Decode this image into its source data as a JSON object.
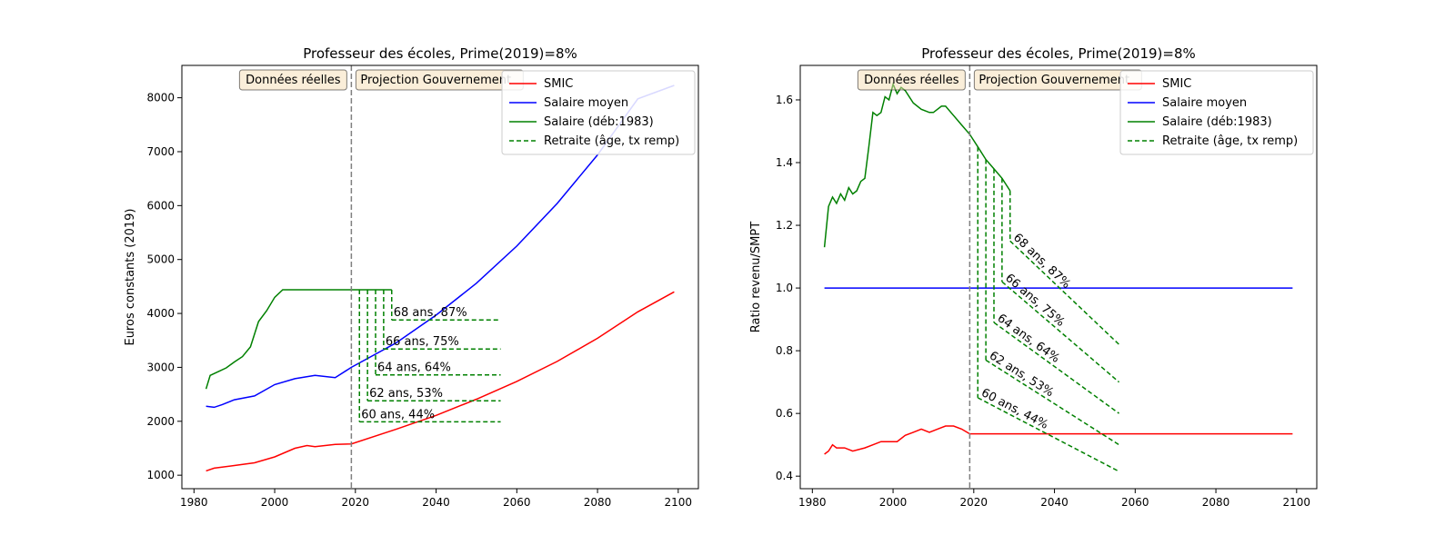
{
  "chart_data": [
    {
      "type": "line",
      "title": "Professeur des écoles, Prime(2019)=8%",
      "xlabel": "",
      "ylabel": "Euros constants (2019)",
      "xlim": [
        1977,
        2105
      ],
      "ylim": [
        750,
        8600
      ],
      "xticks": [
        1980,
        2000,
        2020,
        2040,
        2060,
        2080,
        2100
      ],
      "yticks": [
        1000,
        2000,
        3000,
        4000,
        5000,
        6000,
        7000,
        8000
      ],
      "grid": false,
      "legend_position": "top-right",
      "divider_x": 2019,
      "region_labels": [
        "Données réelles",
        "Projection Gouvernement"
      ],
      "series": [
        {
          "name": "SMIC",
          "color": "#ff0000",
          "style": "solid",
          "x": [
            1983,
            1985,
            1990,
            1995,
            2000,
            2005,
            2008,
            2010,
            2015,
            2019,
            2030,
            2040,
            2050,
            2060,
            2070,
            2080,
            2090,
            2099
          ],
          "y": [
            1080,
            1130,
            1180,
            1230,
            1340,
            1500,
            1550,
            1530,
            1570,
            1580,
            1850,
            2110,
            2410,
            2740,
            3110,
            3540,
            4030,
            4400
          ]
        },
        {
          "name": "Salaire moyen",
          "color": "#0000ff",
          "style": "solid",
          "x": [
            1983,
            1985,
            1987,
            1990,
            1995,
            2000,
            2005,
            2010,
            2015,
            2019,
            2030,
            2040,
            2050,
            2060,
            2070,
            2080,
            2090,
            2099
          ],
          "y": [
            2280,
            2260,
            2310,
            2400,
            2470,
            2680,
            2790,
            2850,
            2810,
            3000,
            3450,
            3970,
            4560,
            5250,
            6040,
            6940,
            7980,
            8230
          ]
        },
        {
          "name": "Salaire (déb:1983)",
          "color": "#008000",
          "style": "solid",
          "x": [
            1983,
            1984,
            1986,
            1988,
            1990,
            1992,
            1994,
            1996,
            1998,
            2000,
            2002,
            2010,
            2019,
            2029
          ],
          "y": [
            2600,
            2850,
            2920,
            2990,
            3100,
            3200,
            3380,
            3850,
            4050,
            4300,
            4440,
            4440,
            4440,
            4440
          ]
        }
      ],
      "retirement": {
        "name": "Retraite (âge, tx remp)",
        "color": "#008000",
        "style": "dashed",
        "end_x": 2056,
        "items": [
          {
            "label": "60 ans, 44%",
            "start_x": 2021,
            "value": 1990
          },
          {
            "label": "62 ans, 53%",
            "start_x": 2023,
            "value": 2380
          },
          {
            "label": "64 ans, 64%",
            "start_x": 2025,
            "value": 2860
          },
          {
            "label": "66 ans, 75%",
            "start_x": 2027,
            "value": 3340
          },
          {
            "label": "68 ans, 87%",
            "start_x": 2029,
            "value": 3880
          }
        ],
        "from_value": 4440
      }
    },
    {
      "type": "line",
      "title": "Professeur des écoles, Prime(2019)=8%",
      "xlabel": "",
      "ylabel": "Ratio revenu/SMPT",
      "xlim": [
        1977,
        2105
      ],
      "ylim": [
        0.36,
        1.71
      ],
      "xticks": [
        1980,
        2000,
        2020,
        2040,
        2060,
        2080,
        2100
      ],
      "yticks": [
        0.4,
        0.6,
        0.8,
        1.0,
        1.2,
        1.4,
        1.6
      ],
      "ytick_labels": [
        "0.4",
        "0.6",
        "0.8",
        "1.0",
        "1.2",
        "1.4",
        "1.6"
      ],
      "grid": false,
      "legend_position": "top-right",
      "divider_x": 2019,
      "region_labels": [
        "Données réelles",
        "Projection Gouvernement"
      ],
      "series": [
        {
          "name": "SMIC",
          "color": "#ff0000",
          "style": "solid",
          "x": [
            1983,
            1984,
            1985,
            1986,
            1988,
            1990,
            1993,
            1995,
            1997,
            1999,
            2001,
            2003,
            2005,
            2007,
            2009,
            2011,
            2013,
            2015,
            2017,
            2019,
            2099
          ],
          "y": [
            0.47,
            0.48,
            0.5,
            0.49,
            0.49,
            0.48,
            0.49,
            0.5,
            0.51,
            0.51,
            0.51,
            0.53,
            0.54,
            0.55,
            0.54,
            0.55,
            0.56,
            0.56,
            0.55,
            0.535,
            0.535
          ]
        },
        {
          "name": "Salaire moyen",
          "color": "#0000ff",
          "style": "solid",
          "x": [
            1983,
            2099
          ],
          "y": [
            1.0,
            1.0
          ]
        },
        {
          "name": "Salaire (déb:1983)",
          "color": "#008000",
          "style": "solid",
          "x": [
            1983,
            1984,
            1985,
            1986,
            1987,
            1988,
            1989,
            1990,
            1991,
            1992,
            1993,
            1994,
            1995,
            1996,
            1997,
            1998,
            1999,
            2000,
            2001,
            2002,
            2003,
            2005,
            2007,
            2009,
            2010,
            2012,
            2013,
            2015,
            2017,
            2019,
            2021,
            2023,
            2025,
            2027,
            2029
          ],
          "y": [
            1.13,
            1.26,
            1.29,
            1.27,
            1.3,
            1.28,
            1.32,
            1.3,
            1.31,
            1.34,
            1.35,
            1.45,
            1.56,
            1.55,
            1.56,
            1.61,
            1.6,
            1.65,
            1.62,
            1.64,
            1.63,
            1.59,
            1.57,
            1.56,
            1.56,
            1.58,
            1.58,
            1.55,
            1.52,
            1.49,
            1.45,
            1.41,
            1.38,
            1.35,
            1.31
          ]
        }
      ],
      "retirement": {
        "name": "Retraite (âge, tx remp)",
        "color": "#008000",
        "style": "dashed",
        "end_x": 2056,
        "items": [
          {
            "label": "60 ans, 44%",
            "start_x": 2021,
            "start_value": 0.65,
            "end_value": 0.415,
            "from_value": 1.45
          },
          {
            "label": "62 ans, 53%",
            "start_x": 2023,
            "start_value": 0.77,
            "end_value": 0.5,
            "from_value": 1.41
          },
          {
            "label": "64 ans, 64%",
            "start_x": 2025,
            "start_value": 0.89,
            "end_value": 0.6,
            "from_value": 1.38
          },
          {
            "label": "66 ans, 75%",
            "start_x": 2027,
            "start_value": 1.02,
            "end_value": 0.7,
            "from_value": 1.35
          },
          {
            "label": "68 ans, 87%",
            "start_x": 2029,
            "start_value": 1.15,
            "end_value": 0.82,
            "from_value": 1.31
          }
        ]
      }
    }
  ]
}
